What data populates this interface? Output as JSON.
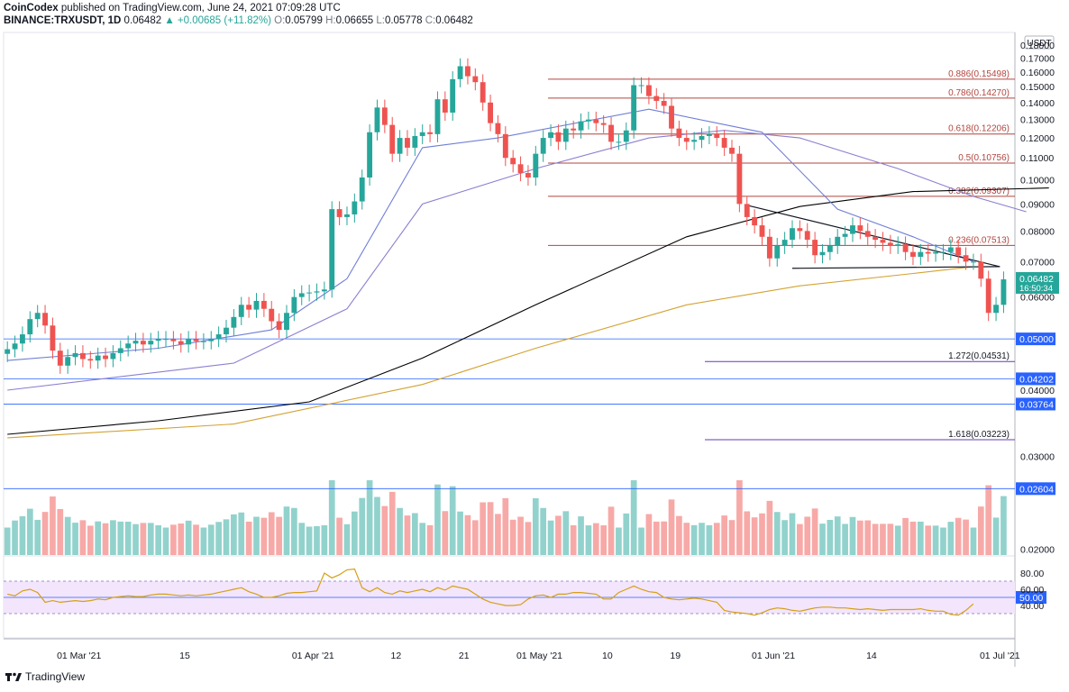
{
  "header": {
    "publisher": "CoinCodex",
    "publish_line": "published on TradingView.com, June 24, 2021 07:09:28 UTC",
    "symbol": "BINANCE:TRXUSDT, 1D",
    "last": "0.06482",
    "change": "+0.00685 (+11.82%)",
    "o_label": "O:",
    "o_value": "0.05799",
    "h_label": "H:",
    "h_value": "0.06655",
    "l_label": "L:",
    "l_value": "0.05778",
    "c_label": "C:",
    "c_value": "0.06482"
  },
  "footer": {
    "brand": "TradingView"
  },
  "colors": {
    "up": "#26a69a",
    "down": "#ef5350",
    "fib": "#b0463f",
    "support": "#2962ff",
    "ma_black": "#000000",
    "ma_gold": "#d4a232",
    "ma_blue": "#6f7fd6",
    "ma_purple": "#8a7fd0",
    "rsi_line": "#d4a017",
    "rsi_band": "#f3e5fb",
    "price_tag": "#26a69a",
    "level_tag": "#2962ff"
  },
  "chart_data": {
    "type": "candlestick",
    "currency_label": "USDT",
    "price_axis": {
      "scale": "log",
      "ylim": [
        0.0195,
        0.19
      ],
      "ticks": [
        "0.18000",
        "0.17000",
        "0.16000",
        "0.15000",
        "0.14000",
        "0.13000",
        "0.12000",
        "0.11000",
        "0.10000",
        "0.09000",
        "0.08000",
        "0.07000",
        "0.06000",
        "0.05000",
        "0.04000",
        "0.03000",
        "0.02000"
      ]
    },
    "time_axis": {
      "start": "2021-02-19",
      "end": "2021-07-03",
      "ticks": [
        {
          "date": "2021-03-01",
          "label": "01 Mar '21"
        },
        {
          "date": "2021-03-15",
          "label": "15"
        },
        {
          "date": "2021-04-01",
          "label": "01 Apr '21"
        },
        {
          "date": "2021-04-12",
          "label": "12"
        },
        {
          "date": "2021-04-21",
          "label": "21"
        },
        {
          "date": "2021-05-01",
          "label": "01 May '21"
        },
        {
          "date": "2021-05-10",
          "label": "10"
        },
        {
          "date": "2021-05-19",
          "label": "19"
        },
        {
          "date": "2021-06-01",
          "label": "01 Jun '21"
        },
        {
          "date": "2021-06-14",
          "label": "14"
        },
        {
          "date": "2021-07-01",
          "label": "01 Jul '21"
        }
      ]
    },
    "closes": [
      0.0478,
      0.049,
      0.051,
      0.0545,
      0.056,
      0.053,
      0.0475,
      0.0445,
      0.0462,
      0.047,
      0.0458,
      0.0455,
      0.0465,
      0.0458,
      0.047,
      0.048,
      0.049,
      0.0496,
      0.0488,
      0.0496,
      0.05,
      0.05,
      0.0495,
      0.0488,
      0.05,
      0.0495,
      0.0495,
      0.05,
      0.051,
      0.0525,
      0.055,
      0.058,
      0.0568,
      0.059,
      0.057,
      0.054,
      0.052,
      0.056,
      0.06,
      0.061,
      0.0612,
      0.0615,
      0.062,
      0.088,
      0.085,
      0.086,
      0.091,
      0.101,
      0.123,
      0.137,
      0.127,
      0.112,
      0.12,
      0.115,
      0.121,
      0.123,
      0.122,
      0.142,
      0.134,
      0.155,
      0.164,
      0.157,
      0.153,
      0.14,
      0.128,
      0.122,
      0.11,
      0.107,
      0.103,
      0.101,
      0.112,
      0.12,
      0.123,
      0.118,
      0.125,
      0.124,
      0.129,
      0.13,
      0.128,
      0.127,
      0.118,
      0.118,
      0.124,
      0.151,
      0.151,
      0.144,
      0.141,
      0.138,
      0.125,
      0.12,
      0.118,
      0.119,
      0.121,
      0.122,
      0.12,
      0.115,
      0.112,
      0.09,
      0.085,
      0.082,
      0.078,
      0.071,
      0.075,
      0.077,
      0.081,
      0.08,
      0.077,
      0.072,
      0.073,
      0.075,
      0.078,
      0.079,
      0.082,
      0.08,
      0.078,
      0.077,
      0.076,
      0.075,
      0.0755,
      0.073,
      0.0715,
      0.073,
      0.0725,
      0.073,
      0.073,
      0.0745,
      0.072,
      0.07,
      0.07,
      0.065,
      0.056,
      0.058,
      0.0648
    ],
    "rsi": {
      "label_50": "50.00",
      "ticks": [
        "80.00",
        "60.00",
        "40.00"
      ],
      "band": [
        30,
        70
      ],
      "values": [
        54,
        52,
        58,
        60,
        56,
        44,
        46,
        44,
        45,
        46,
        45,
        46,
        48,
        47,
        50,
        51,
        52,
        51,
        51,
        53,
        54,
        54,
        53,
        52,
        53,
        52,
        53,
        54,
        56,
        58,
        60,
        62,
        57,
        54,
        50,
        50,
        52,
        55,
        56,
        56,
        57,
        58,
        80,
        74,
        78,
        84,
        85,
        62,
        57,
        62,
        56,
        54,
        58,
        56,
        58,
        60,
        57,
        62,
        59,
        64,
        62,
        60,
        54,
        48,
        44,
        42,
        40,
        40,
        41,
        48,
        52,
        53,
        50,
        54,
        54,
        56,
        56,
        55,
        54,
        48,
        48,
        56,
        60,
        64,
        60,
        57,
        56,
        50,
        48,
        47,
        48,
        49,
        48,
        46,
        44,
        34,
        32,
        31,
        30,
        28,
        31,
        35,
        37,
        36,
        34,
        33,
        35,
        37,
        38,
        38,
        37,
        37,
        36,
        35,
        36,
        35,
        34,
        35,
        35,
        35,
        35,
        36,
        34,
        33,
        33,
        29,
        28,
        34,
        42
      ]
    },
    "moving_averages": [
      {
        "color_key": "ma_black",
        "values": [
          [
            0,
            0.033
          ],
          [
            20,
            0.035
          ],
          [
            40,
            0.038
          ],
          [
            55,
            0.046
          ],
          [
            70,
            0.058
          ],
          [
            90,
            0.078
          ],
          [
            105,
            0.089
          ],
          [
            120,
            0.095
          ],
          [
            138,
            0.0965
          ]
        ]
      },
      {
        "color_key": "ma_gold",
        "values": [
          [
            0,
            0.0325
          ],
          [
            30,
            0.0345
          ],
          [
            55,
            0.041
          ],
          [
            70,
            0.048
          ],
          [
            90,
            0.058
          ],
          [
            105,
            0.063
          ],
          [
            120,
            0.0665
          ],
          [
            128,
            0.0685
          ]
        ]
      },
      {
        "color_key": "ma_blue",
        "values": [
          [
            0,
            0.0455
          ],
          [
            20,
            0.048
          ],
          [
            35,
            0.052
          ],
          [
            45,
            0.065
          ],
          [
            55,
            0.115
          ],
          [
            65,
            0.12
          ],
          [
            85,
            0.136
          ],
          [
            100,
            0.123
          ],
          [
            110,
            0.088
          ],
          [
            120,
            0.078
          ],
          [
            128,
            0.07
          ]
        ]
      },
      {
        "color_key": "ma_purple",
        "values": [
          [
            0,
            0.04
          ],
          [
            30,
            0.045
          ],
          [
            45,
            0.057
          ],
          [
            55,
            0.09
          ],
          [
            70,
            0.105
          ],
          [
            85,
            0.12
          ],
          [
            95,
            0.124
          ],
          [
            105,
            0.12
          ],
          [
            118,
            0.105
          ],
          [
            128,
            0.093
          ],
          [
            135,
            0.087
          ]
        ]
      }
    ],
    "fibonacci": [
      {
        "label": "0.886(0.15498)",
        "price": 0.15498
      },
      {
        "label": "0.786(0.14270)",
        "price": 0.1427
      },
      {
        "label": "0.618(0.12206)",
        "price": 0.12206
      },
      {
        "label": "0.5(0.10756)",
        "price": 0.10756
      },
      {
        "label": "0.382(0.09307)",
        "price": 0.09307
      },
      {
        "label": "0.236(0.07513)",
        "price": 0.07513
      }
    ],
    "extensions": [
      {
        "label": "1.272(0.04531)",
        "price": 0.04531
      },
      {
        "label": "1.618(0.03223)",
        "price": 0.03223
      }
    ],
    "support_levels": [
      {
        "label": "0.05000",
        "price": 0.05
      },
      {
        "label": "0.04202",
        "price": 0.04202
      },
      {
        "label": "0.03764",
        "price": 0.03764
      },
      {
        "label": "0.02604",
        "price": 0.02604
      }
    ],
    "triangle": {
      "apex_date": "2021-07-01",
      "top_start": [
        98,
        0.0895
      ],
      "bottom_start": [
        104,
        0.068
      ]
    },
    "current_price_tag": {
      "price": "0.06482",
      "countdown": "16:50:34"
    }
  }
}
